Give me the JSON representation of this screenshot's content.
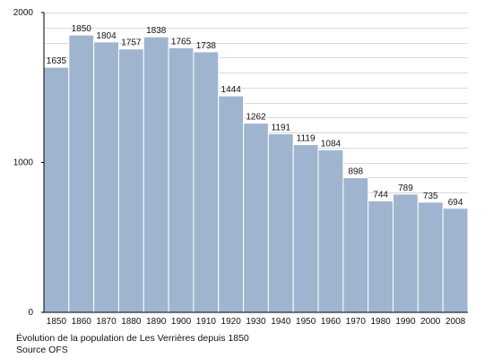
{
  "chart_data": {
    "type": "bar",
    "categories": [
      "1850",
      "1860",
      "1870",
      "1880",
      "1890",
      "1900",
      "1910",
      "1920",
      "1930",
      "1940",
      "1950",
      "1960",
      "1970",
      "1980",
      "1990",
      "2000",
      "2008"
    ],
    "values": [
      1635,
      1850,
      1804,
      1757,
      1838,
      1765,
      1738,
      1444,
      1262,
      1191,
      1119,
      1084,
      898,
      744,
      789,
      735,
      694
    ],
    "data_labels": [
      "1635",
      "1850",
      "1804",
      "1757",
      "1838",
      "1765",
      "1738",
      "1444",
      "1262",
      "1191",
      "1119",
      "1084",
      "898",
      "744",
      "789",
      "735",
      "694"
    ],
    "y_ticks": [
      0,
      1000,
      2000
    ],
    "y_tick_labels": [
      "0",
      "1000",
      "2000"
    ],
    "ylim": [
      0,
      2000
    ],
    "grid": true,
    "bar_color": "#9fb5cf",
    "bar_edge_color": "#ffffff",
    "grid_color": "#d9d9d9"
  },
  "caption": {
    "line1": "Évolution de la population de Les Verrières depuis 1850",
    "line2": "Source OFS"
  }
}
